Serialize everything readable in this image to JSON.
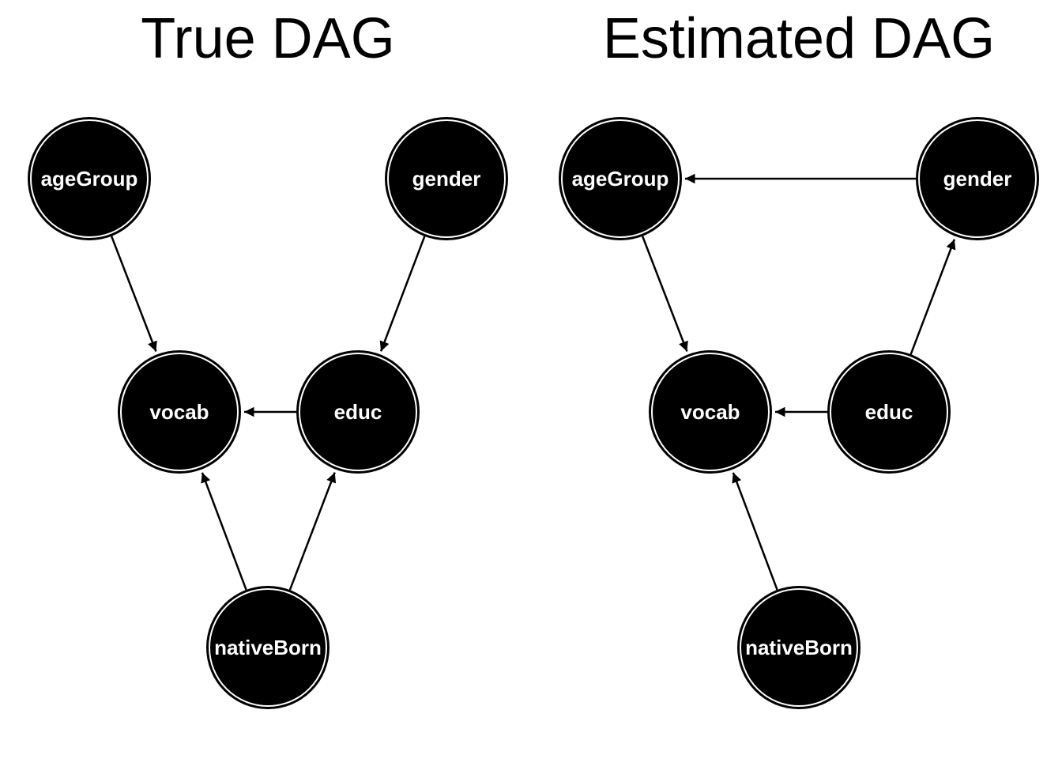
{
  "colors": {
    "node_fill": "#000000",
    "node_ring": "#ffffff",
    "label": "#ffffff",
    "edge": "#000000"
  },
  "graphs": [
    {
      "title": "True DAG",
      "nodes": [
        "ageGroup",
        "gender",
        "vocab",
        "educ",
        "nativeBorn"
      ],
      "edges": [
        {
          "from": "ageGroup",
          "to": "vocab"
        },
        {
          "from": "gender",
          "to": "educ"
        },
        {
          "from": "educ",
          "to": "vocab"
        },
        {
          "from": "nativeBorn",
          "to": "vocab"
        },
        {
          "from": "nativeBorn",
          "to": "educ"
        }
      ]
    },
    {
      "title": "Estimated DAG",
      "nodes": [
        "ageGroup",
        "gender",
        "vocab",
        "educ",
        "nativeBorn"
      ],
      "edges": [
        {
          "from": "gender",
          "to": "ageGroup"
        },
        {
          "from": "ageGroup",
          "to": "vocab"
        },
        {
          "from": "educ",
          "to": "gender"
        },
        {
          "from": "educ",
          "to": "vocab"
        },
        {
          "from": "nativeBorn",
          "to": "vocab"
        }
      ]
    }
  ]
}
